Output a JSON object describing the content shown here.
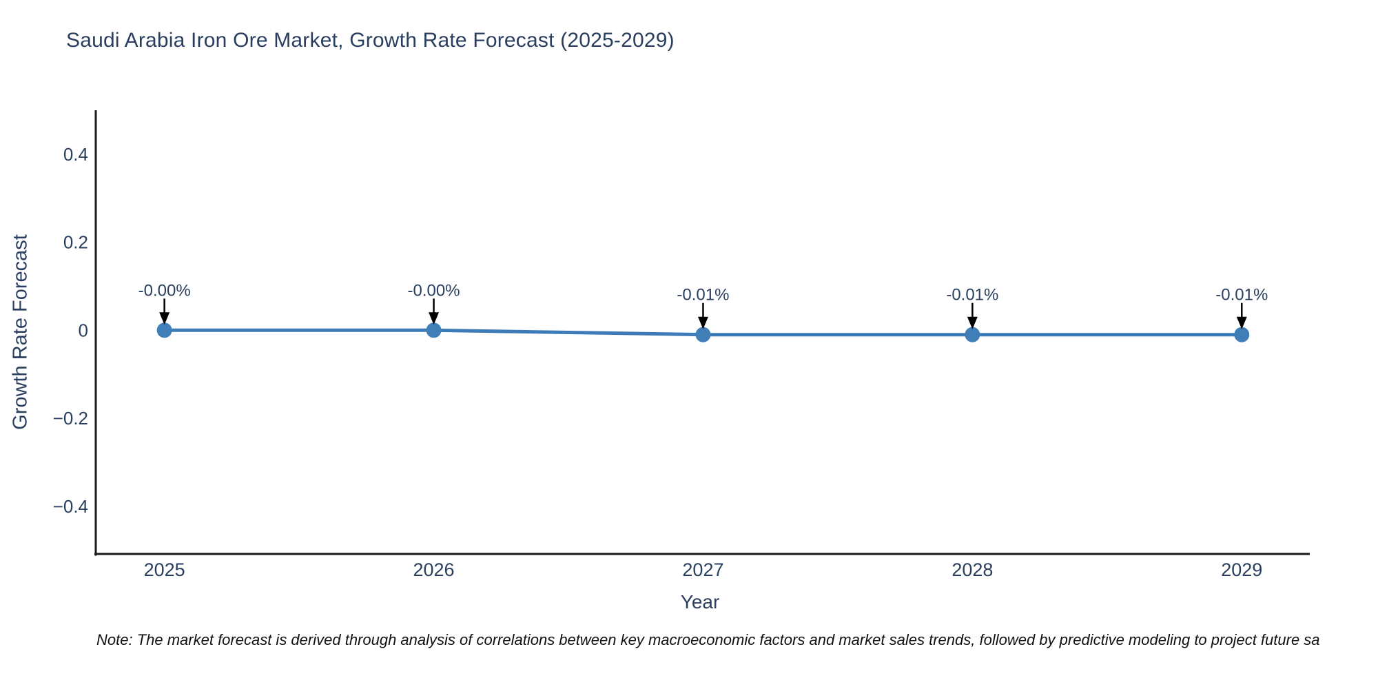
{
  "note": "Note: The market forecast is derived through analysis of correlations between key macroeconomic factors and market sales trends, followed by predictive modeling to project future sa",
  "colors": {
    "title_text": "#2a3f5f",
    "tick_text": "#2a3f5f",
    "annotation_text": "#2a3f5f",
    "axis_line": "#1a1a1a",
    "series_line": "#3d7ab8",
    "marker_fill": "#3f7eb6",
    "arrow": "#000000",
    "background": "#ffffff"
  },
  "chart_data": {
    "type": "line",
    "title": "Saudi Arabia Iron Ore Market, Growth Rate Forecast (2025-2029)",
    "xlabel": "Year",
    "ylabel": "Growth Rate Forecast",
    "x": [
      2025,
      2026,
      2027,
      2028,
      2029
    ],
    "values": [
      -0.0,
      -0.0,
      -0.01,
      -0.01,
      -0.01
    ],
    "point_labels": [
      "-0.00%",
      "-0.00%",
      "-0.01%",
      "-0.01%",
      "-0.01%"
    ],
    "xticks": {
      "values": [
        2025,
        2026,
        2027,
        2028,
        2029
      ],
      "labels": [
        "2025",
        "2026",
        "2027",
        "2028",
        "2029"
      ]
    },
    "yticks": {
      "values": [
        0.4,
        0.2,
        0,
        -0.2,
        -0.4
      ],
      "labels": [
        "0.4",
        "0.2",
        "0",
        "−0.2",
        "−0.4"
      ]
    },
    "xlim": [
      2024.74,
      2029.25
    ],
    "ylim": [
      -0.51,
      0.5
    ],
    "grid": false,
    "legend": false,
    "annotations_have_arrows": true
  }
}
